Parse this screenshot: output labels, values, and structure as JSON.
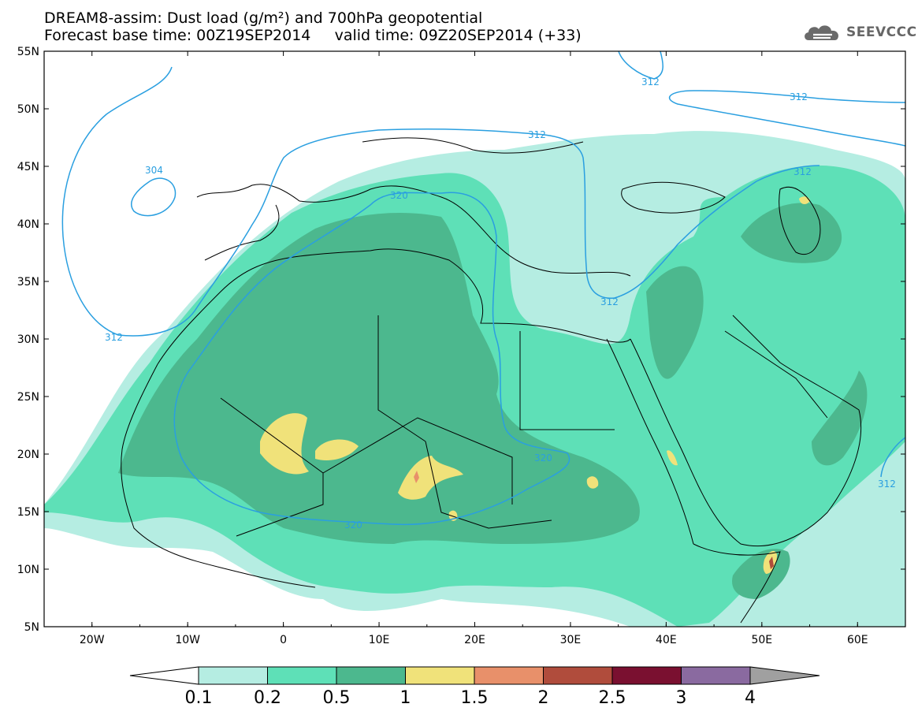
{
  "header": {
    "line1": "DREAM8-assim: Dust load (g/m²) and 700hPa geopotential",
    "line2": "Forecast base time: 00Z19SEP2014     valid time: 09Z20SEP2014 (+33)",
    "brand": "SEEVCCC"
  },
  "axes": {
    "lat_labels": [
      "55N",
      "50N",
      "45N",
      "40N",
      "35N",
      "30N",
      "25N",
      "20N",
      "15N",
      "10N",
      "5N"
    ],
    "lon_labels": [
      "20W",
      "10W",
      "0",
      "10E",
      "20E",
      "30E",
      "40E",
      "50E",
      "60E"
    ]
  },
  "contours": {
    "labels": [
      "304",
      "312",
      "312",
      "312",
      "312",
      "312",
      "312",
      "320",
      "320",
      "320"
    ]
  },
  "colorbar": {
    "levels": [
      "0.1",
      "0.2",
      "0.5",
      "1",
      "1.5",
      "2",
      "2.5",
      "3",
      "4"
    ],
    "colors": [
      "#b5ede2",
      "#5ee0b7",
      "#4cb88e",
      "#f0e27a",
      "#e8906a",
      "#b04c3c",
      "#7a1030",
      "#8a6aa0"
    ]
  },
  "colors": {
    "c1": "#b5ede2",
    "c2": "#5ee0b7",
    "c3": "#4cb88e",
    "c4": "#f0e27a",
    "c5": "#e8906a",
    "contour": "#2a9fe0",
    "border": "#000000"
  }
}
